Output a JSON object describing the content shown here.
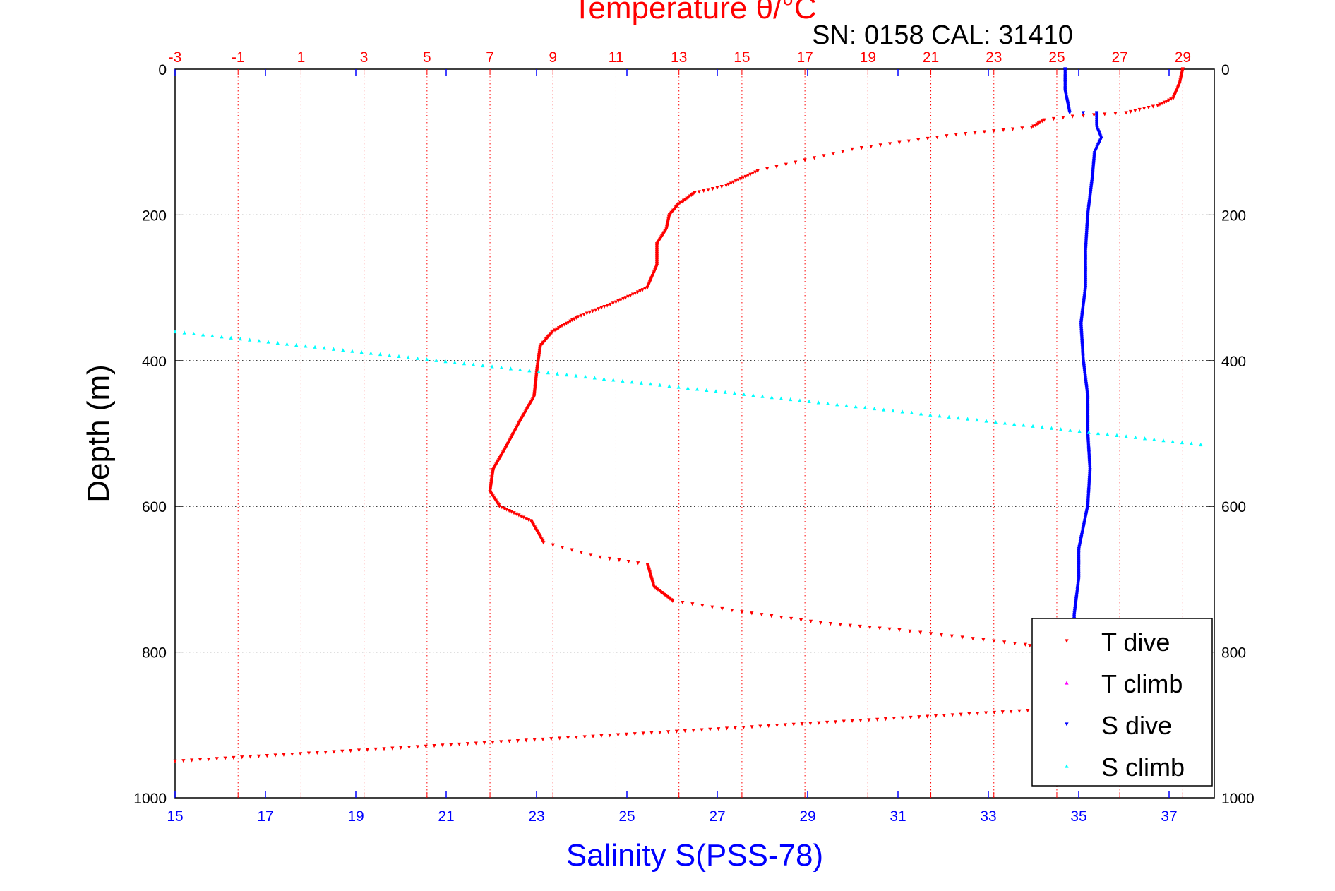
{
  "colors": {
    "temperature": "#ff0000",
    "salinity": "#0000ff",
    "t_climb": "#ff00ff",
    "s_climb": "#00ffff",
    "grid_temp": "#ff0000",
    "grid_depth": "#000000"
  },
  "chart_data": {
    "type": "scatter",
    "title": "Temperature θ/°C",
    "subtitle": "SN: 0158  CAL: 31410",
    "ylabel": "Depth (m)",
    "xlabel": "Salinity S(PSS-78)",
    "ylim": [
      0,
      1000
    ],
    "y_reversed": true,
    "y_ticks": [
      "0",
      "200",
      "400",
      "600",
      "800",
      "1000"
    ],
    "temperature_axis": {
      "position": "top",
      "range": [
        -3,
        30
      ],
      "ticks": [
        "-3",
        "-1",
        "1",
        "3",
        "5",
        "7",
        "9",
        "11",
        "13",
        "15",
        "17",
        "19",
        "21",
        "23",
        "25",
        "27",
        "29"
      ]
    },
    "salinity_axis": {
      "position": "bottom",
      "range": [
        15,
        38
      ],
      "ticks": [
        "15",
        "17",
        "19",
        "21",
        "23",
        "25",
        "27",
        "29",
        "31",
        "33",
        "35",
        "37"
      ]
    },
    "grid": true,
    "legend_placement": "bottom-right",
    "legend": [
      "T dive",
      "T climb",
      "S dive",
      "S climb"
    ],
    "series": [
      {
        "name": "T dive",
        "axis": "temperature",
        "marker": "triangle-down",
        "points": [
          [
            29.0,
            0
          ],
          [
            28.9,
            20
          ],
          [
            28.7,
            40
          ],
          [
            28.2,
            50
          ],
          [
            27.2,
            60
          ],
          [
            25.5,
            65
          ],
          [
            24.6,
            70
          ],
          [
            24.2,
            80
          ],
          [
            21.8,
            90
          ],
          [
            18.5,
            110
          ],
          [
            17.0,
            125
          ],
          [
            15.5,
            140
          ],
          [
            14.5,
            160
          ],
          [
            13.5,
            170
          ],
          [
            13.0,
            185
          ],
          [
            12.7,
            200
          ],
          [
            12.6,
            220
          ],
          [
            12.3,
            240
          ],
          [
            12.3,
            270
          ],
          [
            12.0,
            300
          ],
          [
            11.0,
            320
          ],
          [
            9.8,
            340
          ],
          [
            9.0,
            360
          ],
          [
            8.6,
            380
          ],
          [
            8.5,
            410
          ],
          [
            8.4,
            450
          ],
          [
            8.0,
            480
          ],
          [
            7.5,
            520
          ],
          [
            7.1,
            550
          ],
          [
            7.0,
            580
          ],
          [
            7.3,
            600
          ],
          [
            8.3,
            620
          ],
          [
            8.7,
            650
          ],
          [
            10.5,
            670
          ],
          [
            12.0,
            680
          ],
          [
            12.2,
            710
          ],
          [
            12.5,
            720
          ],
          [
            12.8,
            730
          ],
          [
            15.0,
            745
          ],
          [
            17.5,
            760
          ],
          [
            20.0,
            770
          ],
          [
            22.0,
            780
          ],
          [
            24.0,
            790
          ],
          [
            25.0,
            800
          ]
        ]
      },
      {
        "name": "T dive",
        "axis": "temperature",
        "marker": "triangle-down",
        "line_from": [
          26.2,
          875
        ],
        "line_to": [
          -3.0,
          950
        ]
      },
      {
        "name": "S dive",
        "axis": "salinity",
        "marker": "triangle-down",
        "points": [
          [
            34.7,
            0
          ],
          [
            34.7,
            30
          ],
          [
            34.8,
            60
          ],
          [
            35.4,
            60
          ],
          [
            35.4,
            80
          ],
          [
            35.5,
            95
          ],
          [
            35.35,
            115
          ],
          [
            35.3,
            150
          ],
          [
            35.2,
            200
          ],
          [
            35.15,
            250
          ],
          [
            35.15,
            300
          ],
          [
            35.05,
            350
          ],
          [
            35.1,
            400
          ],
          [
            35.2,
            450
          ],
          [
            35.2,
            500
          ],
          [
            35.25,
            550
          ],
          [
            35.2,
            600
          ],
          [
            35.0,
            660
          ],
          [
            35.0,
            700
          ],
          [
            34.9,
            750
          ],
          [
            34.9,
            790
          ]
        ]
      },
      {
        "name": "S climb",
        "axis": "salinity",
        "marker": "triangle-up",
        "line_from": [
          15.0,
          360
        ],
        "line_to": [
          37.7,
          515
        ]
      }
    ]
  }
}
